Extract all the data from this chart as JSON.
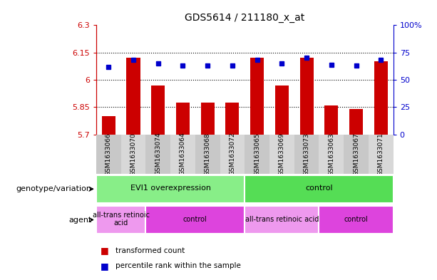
{
  "title": "GDS5614 / 211180_x_at",
  "samples": [
    "GSM1633066",
    "GSM1633070",
    "GSM1633074",
    "GSM1633064",
    "GSM1633068",
    "GSM1633072",
    "GSM1633065",
    "GSM1633069",
    "GSM1633073",
    "GSM1633063",
    "GSM1633067",
    "GSM1633071"
  ],
  "red_values": [
    5.8,
    6.12,
    5.97,
    5.875,
    5.875,
    5.875,
    6.12,
    5.97,
    6.12,
    5.86,
    5.84,
    6.1
  ],
  "blue_values": [
    62,
    68,
    65,
    63,
    63,
    63,
    68,
    65,
    70,
    64,
    63,
    68
  ],
  "ylim_left": [
    5.7,
    6.3
  ],
  "ylim_right": [
    0,
    100
  ],
  "yticks_left": [
    5.7,
    5.85,
    6.0,
    6.15,
    6.3
  ],
  "yticks_right": [
    0,
    25,
    50,
    75,
    100
  ],
  "ytick_labels_left": [
    "5.7",
    "5.85",
    "6",
    "6.15",
    "6.3"
  ],
  "ytick_labels_right": [
    "0",
    "25",
    "50",
    "75",
    "100%"
  ],
  "hlines": [
    5.85,
    6.0,
    6.15
  ],
  "bar_color": "#cc0000",
  "dot_color": "#0000cc",
  "bar_bottom": 5.7,
  "genotype_groups": [
    {
      "label": "EVI1 overexpression",
      "start": 0,
      "end": 6,
      "color": "#88ee88"
    },
    {
      "label": "control",
      "start": 6,
      "end": 12,
      "color": "#55dd55"
    }
  ],
  "agent_groups": [
    {
      "label": "all-trans retinoic\nacid",
      "start": 0,
      "end": 2,
      "color": "#ee99ee"
    },
    {
      "label": "control",
      "start": 2,
      "end": 6,
      "color": "#dd44dd"
    },
    {
      "label": "all-trans retinoic acid",
      "start": 6,
      "end": 9,
      "color": "#ee99ee"
    },
    {
      "label": "control",
      "start": 9,
      "end": 12,
      "color": "#dd44dd"
    }
  ],
  "row_labels": [
    "genotype/variation",
    "agent"
  ],
  "legend_items": [
    {
      "color": "#cc0000",
      "label": "transformed count"
    },
    {
      "color": "#0000cc",
      "label": "percentile rank within the sample"
    }
  ],
  "axis_color_left": "#cc0000",
  "axis_color_right": "#0000cc",
  "bar_width": 0.55,
  "xtick_bg": "#cccccc",
  "plot_bg": "#ffffff"
}
